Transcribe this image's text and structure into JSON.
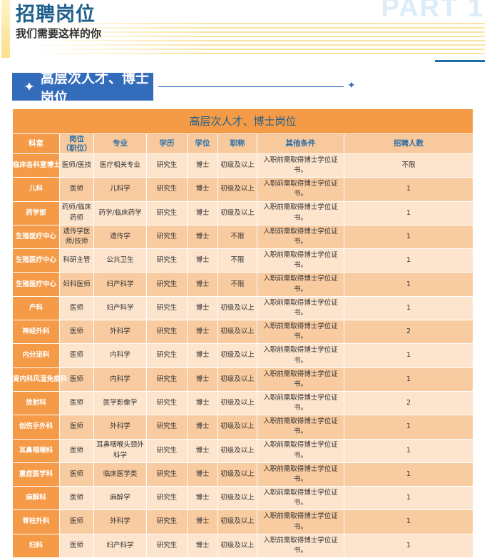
{
  "header": {
    "title": "招聘岗位",
    "subtitle": "我们需要这样的你",
    "part": "PART 1"
  },
  "section": {
    "title": "高层次人才、博士岗位",
    "star_icon": "four-point-star"
  },
  "table": {
    "title": "高层次人才、博士岗位",
    "columns": [
      "科室",
      "岗位\n（职位）",
      "专业",
      "学历",
      "学位",
      "职称",
      "其他条件",
      "招聘人数"
    ],
    "rows": [
      [
        "临床各科室博士",
        "医师/医技",
        "医疗相关专业",
        "研究生",
        "博士",
        "初级及以上",
        "入职前需取得博士学位证书。",
        "不限"
      ],
      [
        "儿科",
        "医师",
        "儿科学",
        "研究生",
        "博士",
        "初级及以上",
        "入职前需取得博士学位证书。",
        "1"
      ],
      [
        "药学部",
        "药师/临床药师",
        "药学/临床药学",
        "研究生",
        "博士",
        "初级及以上",
        "入职前需取得博士学位证书。",
        "1"
      ],
      [
        "生殖医疗中心",
        "遗传学医师/技师",
        "遗传学",
        "研究生",
        "博士",
        "不限",
        "入职前需取得博士学位证书。",
        "1"
      ],
      [
        "生殖医疗中心",
        "科研主管",
        "公共卫生",
        "研究生",
        "博士",
        "不限",
        "入职前需取得博士学位证书。",
        "1"
      ],
      [
        "生殖医疗中心",
        "妇科医师",
        "妇产科学",
        "研究生",
        "博士",
        "不限",
        "入职前需取得博士学位证书。",
        "1"
      ],
      [
        "产科",
        "医师",
        "妇产科学",
        "研究生",
        "博士",
        "初级及以上",
        "入职前需取得博士学位证书。",
        "1"
      ],
      [
        "神经外科",
        "医师",
        "外科学",
        "研究生",
        "博士",
        "初级及以上",
        "入职前需取得博士学位证书。",
        "2"
      ],
      [
        "内分泌科",
        "医师",
        "内科学",
        "研究生",
        "博士",
        "初级及以上",
        "入职前需取得博士学位证书。",
        "1"
      ],
      [
        "肾内科风湿免疫科",
        "医师",
        "内科学",
        "研究生",
        "博士",
        "初级及以上",
        "入职前需取得博士学位证书。",
        "1"
      ],
      [
        "放射科",
        "医师",
        "医学影像学",
        "研究生",
        "博士",
        "初级及以上",
        "入职前需取得博士学位证书。",
        "2"
      ],
      [
        "创伤手外科",
        "医师",
        "外科学",
        "研究生",
        "博士",
        "初级及以上",
        "入职前需取得博士学位证书。",
        "1"
      ],
      [
        "耳鼻咽喉科",
        "医师",
        "耳鼻咽喉头颈外科学",
        "研究生",
        "博士",
        "初级及以上",
        "入职前需取得博士学位证书。",
        "1"
      ],
      [
        "重症医学科",
        "医师",
        "临床医学类",
        "研究生",
        "博士",
        "初级及以上",
        "入职前需取得博士学位证书。",
        "1"
      ],
      [
        "麻醉科",
        "医师",
        "麻醉学",
        "研究生",
        "博士",
        "初级及以上",
        "入职前需取得博士学位证书。",
        "1"
      ],
      [
        "脊柱外科",
        "医师",
        "外科学",
        "研究生",
        "博士",
        "初级及以上",
        "入职前需取得博士学位证书。",
        "1"
      ],
      [
        "妇科",
        "医师",
        "妇产科学",
        "研究生",
        "博士",
        "初级及以上",
        "入职前需取得博士学位证书。",
        "1"
      ]
    ]
  },
  "colors": {
    "orange": "#f59a46",
    "light_row": "#fde4cc",
    "dark_row": "#f9cba0",
    "blue": "#346cbc",
    "title_blue": "#1f5f8b"
  }
}
